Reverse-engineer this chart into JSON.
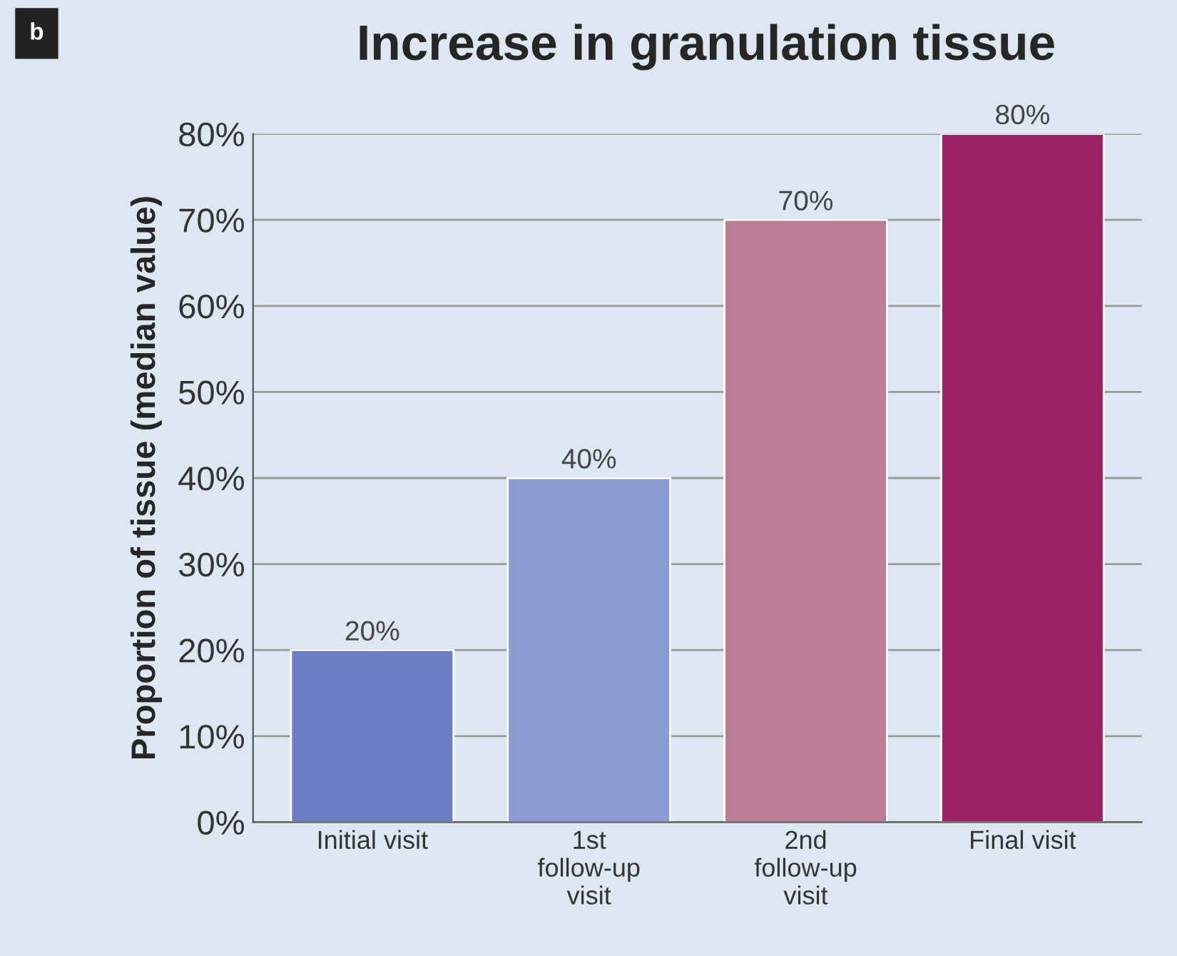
{
  "chart_data": {
    "type": "bar",
    "title": "Increase in granulation tissue",
    "ylabel": "Proportion of tissue (median value)",
    "annotations": [
      "b"
    ],
    "categories": [
      "Initial visit",
      "1st\nfollow-up\nvisit",
      "2nd\nfollow-up\nvisit",
      "Final visit"
    ],
    "values": [
      20,
      40,
      70,
      80
    ],
    "colors": [
      "#6a80c2",
      "#8c9bd1",
      "#bb7c95",
      "#9a2465"
    ],
    "value_labels": [
      "20%",
      "40%",
      "70%",
      "80%"
    ],
    "ylim": [
      0,
      80
    ],
    "yticks": [
      {
        "value": 0,
        "label": "0%"
      },
      {
        "value": 10,
        "label": "10%"
      },
      {
        "value": 20,
        "label": "20%"
      },
      {
        "value": 30,
        "label": "30%"
      },
      {
        "value": 40,
        "label": "40%"
      },
      {
        "value": 50,
        "label": "50%"
      },
      {
        "value": 60,
        "label": "60%"
      },
      {
        "value": 70,
        "label": "70%"
      },
      {
        "value": 80,
        "label": "80%"
      }
    ],
    "grid": "y"
  }
}
